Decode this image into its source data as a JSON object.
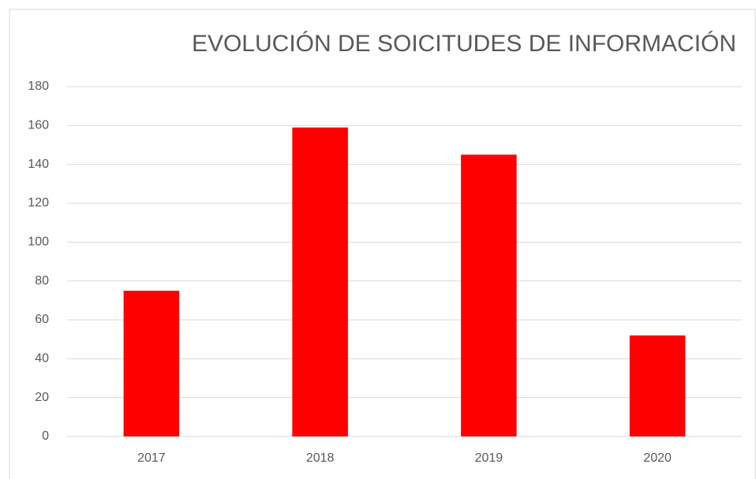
{
  "chart_data": {
    "type": "bar",
    "title": "EVOLUCIÓN DE SOICITUDES DE INFORMACIÓN",
    "categories": [
      "2017",
      "2018",
      "2019",
      "2020"
    ],
    "values": [
      75,
      159,
      145,
      52
    ],
    "color": "#ff0000",
    "ylim": [
      0,
      180
    ],
    "yticks": [
      0,
      20,
      40,
      60,
      80,
      100,
      120,
      140,
      160,
      180
    ],
    "grid": true
  }
}
